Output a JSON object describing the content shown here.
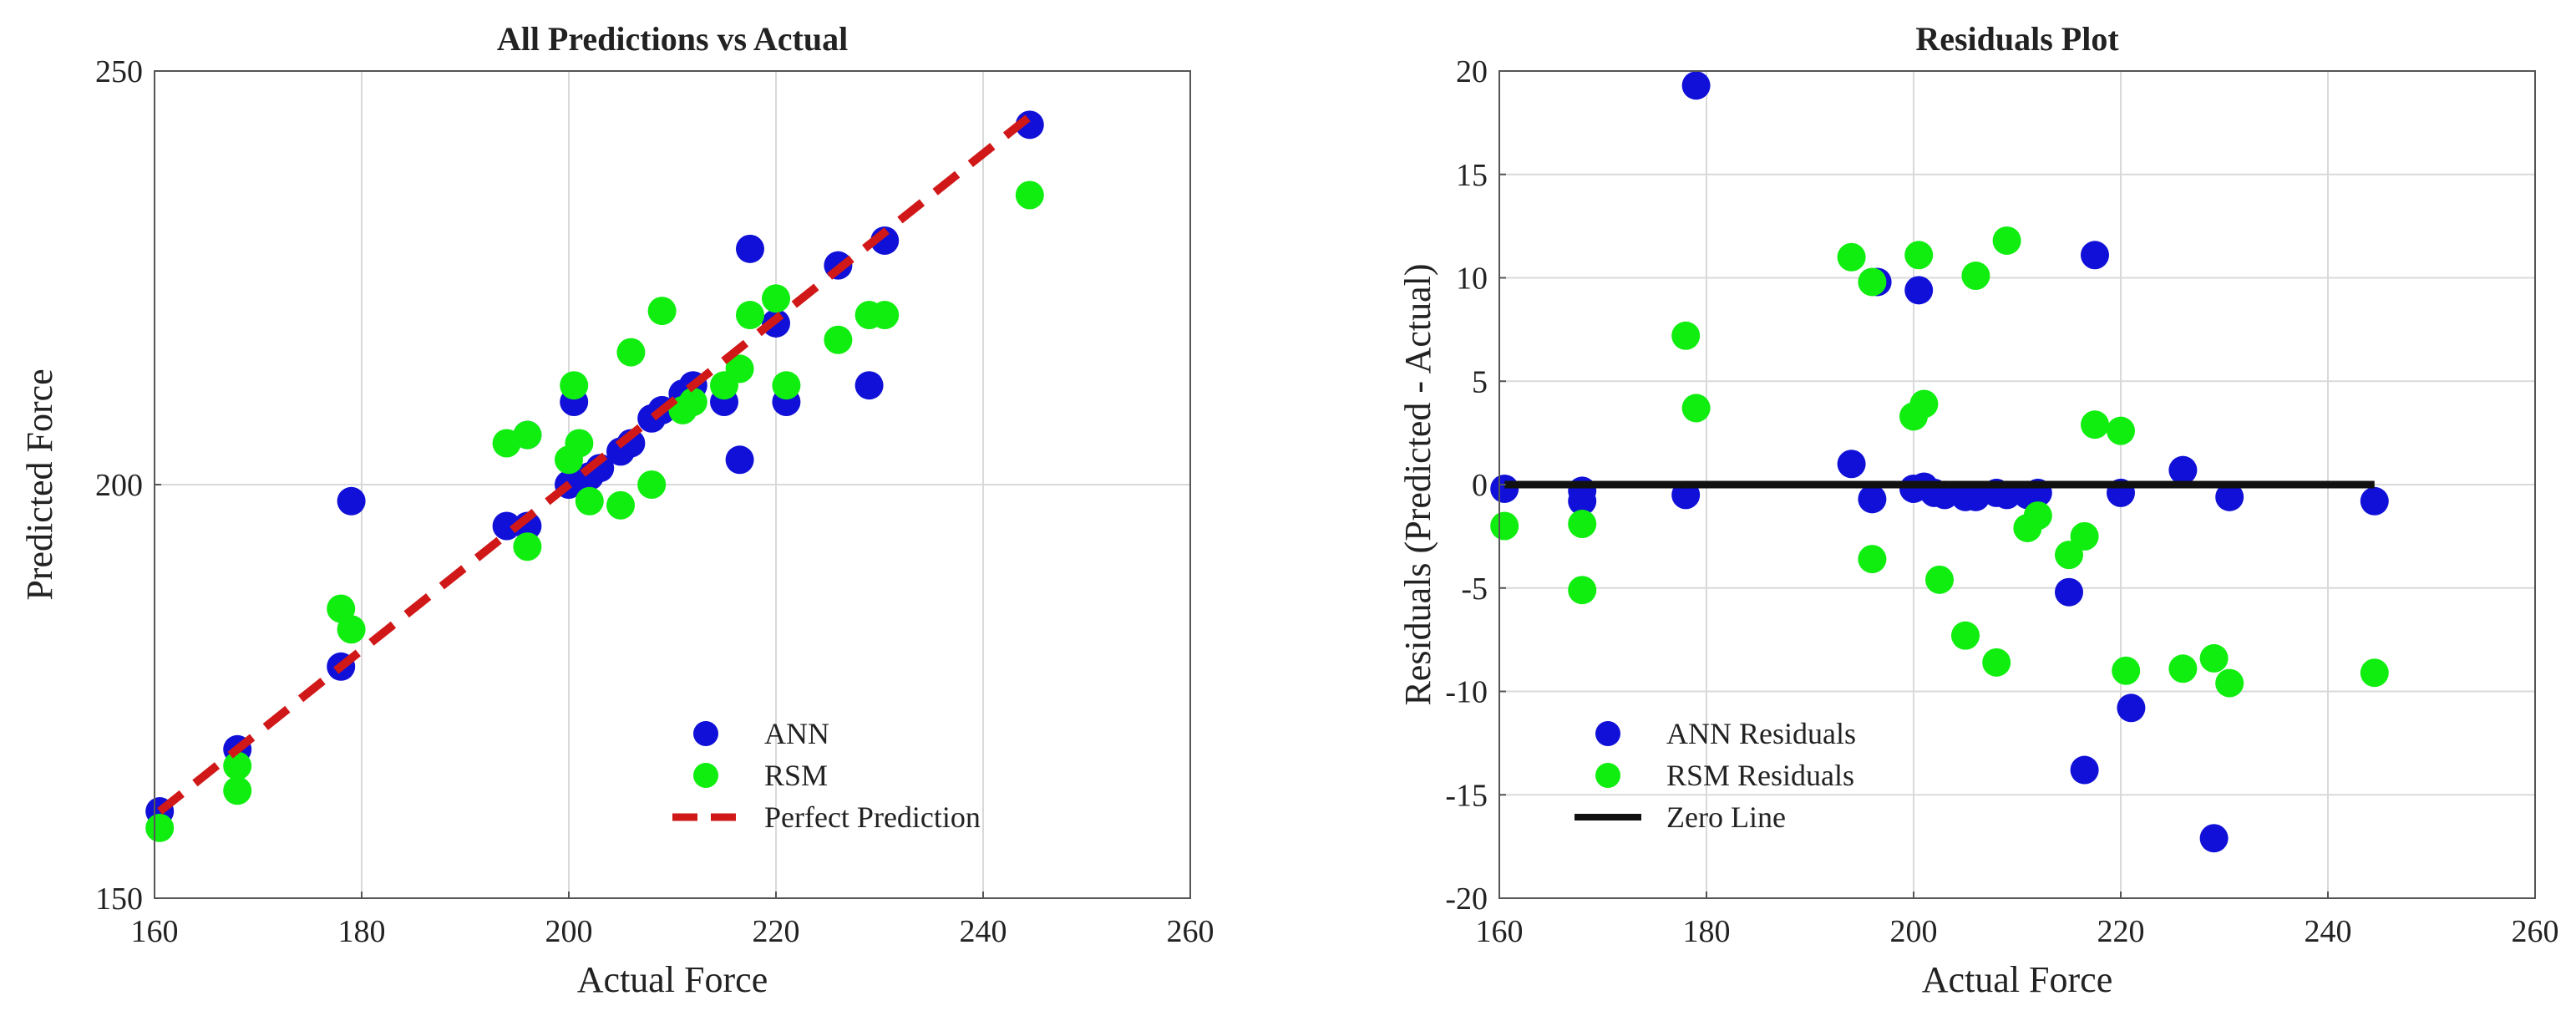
{
  "chart_data": [
    {
      "type": "scatter",
      "title": "All Predictions vs Actual",
      "xlabel": "Actual Force",
      "ylabel": "Predicted Force",
      "xlim": [
        160,
        260
      ],
      "ylim": [
        150,
        250
      ],
      "xticks": [
        160,
        180,
        200,
        220,
        240,
        260
      ],
      "yticks": [
        150,
        200,
        250
      ],
      "grid": true,
      "legend_position": "bottom-center",
      "series": [
        {
          "name": "ANN",
          "color": "#1010d8",
          "points": [
            [
              160.5,
              160.5
            ],
            [
              168,
              168
            ],
            [
              178,
              178
            ],
            [
              179,
              198
            ],
            [
              194,
              195
            ],
            [
              196,
              195
            ],
            [
              196,
              206
            ],
            [
              200,
              200
            ],
            [
              200.5,
              210
            ],
            [
              202,
              201
            ],
            [
              203,
              202
            ],
            [
              205,
              204
            ],
            [
              206,
              205
            ],
            [
              208,
              208
            ],
            [
              209,
              209
            ],
            [
              211,
              211
            ],
            [
              212,
              212
            ],
            [
              215,
              210
            ],
            [
              216.5,
              203
            ],
            [
              217.5,
              228.5
            ],
            [
              220,
              219.5
            ],
            [
              221,
              210
            ],
            [
              226,
              226.5
            ],
            [
              229,
              212
            ],
            [
              230.5,
              229.5
            ],
            [
              244.5,
              243.5
            ]
          ]
        },
        {
          "name": "RSM",
          "color": "#10ee10",
          "points": [
            [
              160.5,
              158.5
            ],
            [
              168,
              163
            ],
            [
              168,
              166
            ],
            [
              178,
              185
            ],
            [
              179,
              182.5
            ],
            [
              194,
              205
            ],
            [
              196,
              192.5
            ],
            [
              196,
              206
            ],
            [
              200,
              203
            ],
            [
              200.5,
              212
            ],
            [
              201,
              205
            ],
            [
              202,
              198
            ],
            [
              205,
              197.5
            ],
            [
              206,
              216
            ],
            [
              208,
              200
            ],
            [
              209,
              221
            ],
            [
              211,
              209
            ],
            [
              212,
              210
            ],
            [
              215,
              212
            ],
            [
              216.5,
              214
            ],
            [
              217.5,
              220.5
            ],
            [
              220,
              222.5
            ],
            [
              221,
              212
            ],
            [
              226,
              217.5
            ],
            [
              229,
              220.5
            ],
            [
              230.5,
              220.5
            ],
            [
              244.5,
              235
            ]
          ]
        },
        {
          "name": "Perfect Prediction",
          "kind": "line",
          "style": "dashed",
          "color": "#d01818",
          "points": [
            [
              160.5,
              160.5
            ],
            [
              244.5,
              244.5
            ]
          ]
        }
      ]
    },
    {
      "type": "scatter",
      "title": "Residuals Plot",
      "xlabel": "Actual Force",
      "ylabel": "Residuals (Predicted - Actual)",
      "xlim": [
        160,
        260
      ],
      "ylim": [
        -20,
        20
      ],
      "xticks": [
        160,
        180,
        200,
        220,
        240,
        260
      ],
      "yticks": [
        -20,
        -15,
        -10,
        -5,
        0,
        5,
        10,
        15,
        20
      ],
      "grid": true,
      "legend_position": "bottom-left",
      "series": [
        {
          "name": "ANN Residuals",
          "color": "#1010d8",
          "points": [
            [
              160.5,
              -0.2
            ],
            [
              168,
              -0.8
            ],
            [
              168,
              -0.3
            ],
            [
              178,
              -0.5
            ],
            [
              179,
              19.3
            ],
            [
              194,
              1
            ],
            [
              196,
              -0.7
            ],
            [
              196.5,
              9.8
            ],
            [
              200,
              -0.2
            ],
            [
              200.5,
              9.4
            ],
            [
              201,
              -0.1
            ],
            [
              202,
              -0.4
            ],
            [
              203,
              -0.5
            ],
            [
              205,
              -0.6
            ],
            [
              206,
              -0.6
            ],
            [
              208,
              -0.4
            ],
            [
              209,
              -0.5
            ],
            [
              211,
              -0.5
            ],
            [
              212,
              -0.4
            ],
            [
              215,
              -5.2
            ],
            [
              216.5,
              -13.8
            ],
            [
              217.5,
              11.1
            ],
            [
              220,
              -0.4
            ],
            [
              221,
              -10.8
            ],
            [
              226,
              0.7
            ],
            [
              229,
              -17.1
            ],
            [
              230.5,
              -0.6
            ],
            [
              244.5,
              -0.8
            ]
          ]
        },
        {
          "name": "RSM Residuals",
          "color": "#10ee10",
          "points": [
            [
              160.5,
              -2
            ],
            [
              168,
              -1.9
            ],
            [
              168,
              -5.1
            ],
            [
              178,
              7.2
            ],
            [
              179,
              3.7
            ],
            [
              194,
              11
            ],
            [
              196,
              9.8
            ],
            [
              196,
              -3.6
            ],
            [
              200,
              3.3
            ],
            [
              200.5,
              11.1
            ],
            [
              201,
              3.9
            ],
            [
              202.5,
              -4.6
            ],
            [
              205,
              -7.3
            ],
            [
              206,
              10.1
            ],
            [
              208,
              -8.6
            ],
            [
              209,
              11.8
            ],
            [
              211,
              -2.1
            ],
            [
              212,
              -1.5
            ],
            [
              215,
              -3.4
            ],
            [
              216.5,
              -2.5
            ],
            [
              217.5,
              2.9
            ],
            [
              220,
              2.6
            ],
            [
              220.5,
              -9
            ],
            [
              226,
              -8.9
            ],
            [
              229,
              -8.4
            ],
            [
              230.5,
              -9.6
            ],
            [
              244.5,
              -9.1
            ]
          ]
        },
        {
          "name": "Zero Line",
          "kind": "line",
          "style": "solid",
          "color": "#111111",
          "points": [
            [
              160.5,
              0
            ],
            [
              244.5,
              0
            ]
          ]
        }
      ]
    }
  ]
}
